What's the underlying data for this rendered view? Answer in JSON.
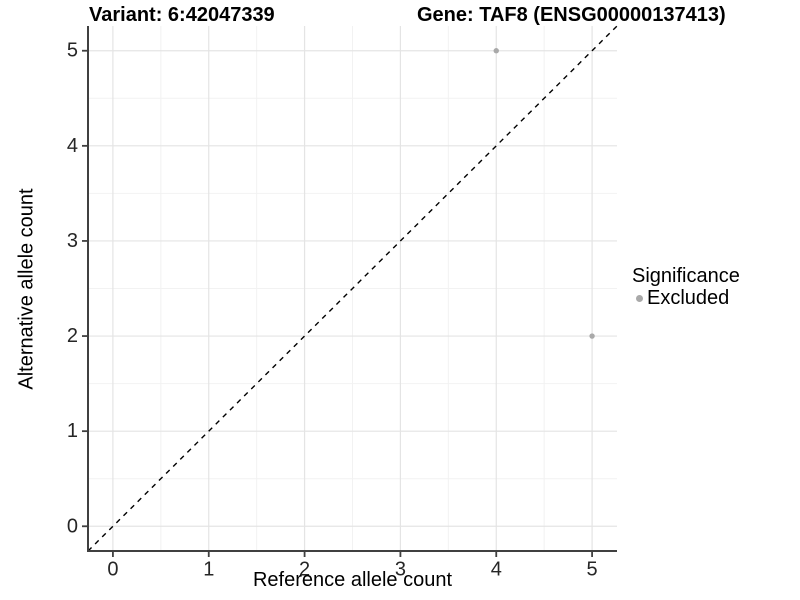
{
  "chart_data": {
    "type": "scatter",
    "title_left": "Variant: 6:42047339",
    "title_right": "Gene: TAF8 (ENSG00000137413)",
    "xlabel": "Reference allele count",
    "ylabel": "Alternative allele count",
    "xlim": [
      -0.26,
      5.26
    ],
    "ylim": [
      -0.26,
      5.26
    ],
    "xticks": [
      0,
      1,
      2,
      3,
      4,
      5
    ],
    "yticks": [
      0,
      1,
      2,
      3,
      4,
      5
    ],
    "minor_xticks": [
      0.5,
      1.5,
      2.5,
      3.5,
      4.5
    ],
    "minor_yticks": [
      0.5,
      1.5,
      2.5,
      3.5,
      4.5
    ],
    "grid": "major-and-minor",
    "series": [
      {
        "name": "Excluded",
        "marker": "circle",
        "color": "#a9a9a9",
        "points": [
          [
            4,
            5
          ],
          [
            5,
            2
          ]
        ]
      }
    ],
    "reference_line": {
      "kind": "identity-diagonal",
      "style": "dashed",
      "color": "#000000"
    },
    "legend": {
      "title": "Significance",
      "position": "right",
      "items": [
        {
          "label": "Excluded",
          "color": "#a9a9a9",
          "marker": "circle"
        }
      ]
    }
  },
  "colors": {
    "background": "#ffffff",
    "axis_line": "#404040",
    "tick_mark": "#404040",
    "tick_label": "#262626",
    "grid_major": "#e4e4e4",
    "grid_minor": "#f2f2f2",
    "point": "#a9a9a9",
    "title": "#000000"
  }
}
